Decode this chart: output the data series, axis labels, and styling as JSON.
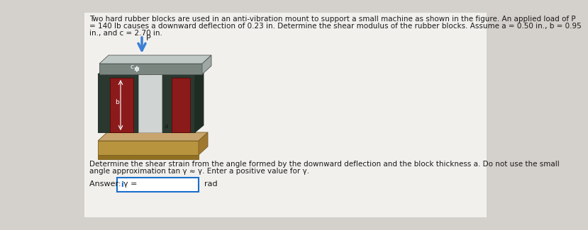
{
  "bg_color": "#d4d0cb",
  "panel_color": "#e8e6e1",
  "title_text_line1": "Two hard rubber blocks are used in an anti-vibration mount to support a small machine as shown in the figure. An applied load of P",
  "title_text_line2": "= 140 lb causes a downward deflection of 0.23 in. Determine the shear modulus of the rubber blocks. Assume a = 0.50 in., b = 0.95",
  "title_text_line3": "in., and c = 2.70 in.",
  "instruction_line1": "Determine the shear strain from the angle formed by the downward deflection and the block thickness a. Do not use the small",
  "instruction_line2": "angle approximation tan γ ≈ γ. Enter a positive value for γ.",
  "answer_label": "Answer: γ =",
  "answer_unit": "rad",
  "title_fontsize": 7.5,
  "instruction_fontsize": 7.5,
  "answer_fontsize": 8,
  "label_fontsize": 6.5,
  "arrow_color": "#3a7fd5",
  "rubber_color": "#8b1a1a",
  "rubber_dark": "#5a0000",
  "rubber_side": "#6b0000",
  "plate_gray": "#7a8580",
  "plate_light": "#a0a8a5",
  "plate_top": "#c0c8c5",
  "base_front": "#b8943e",
  "base_top": "#c8a46e",
  "base_side": "#a07830",
  "input_border": "#1a6fcc"
}
